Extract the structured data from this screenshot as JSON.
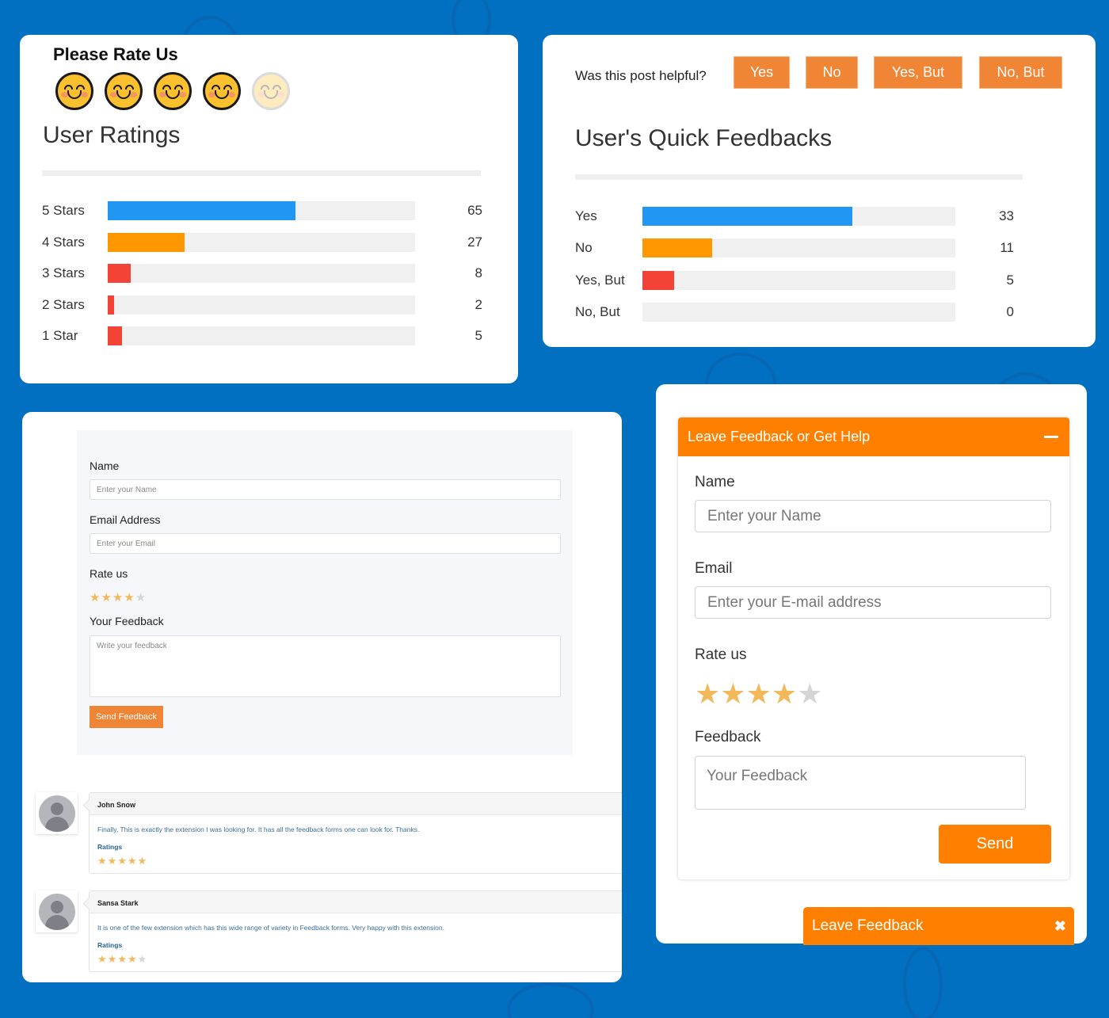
{
  "colors": {
    "background": "#0170c0",
    "accent_orange": "#f08535",
    "widget_orange": "#ff8000",
    "bar_blue": "#2196f3",
    "bar_orange": "#ff9800",
    "bar_red": "#f44336",
    "track": "#f0f0f0",
    "star_on": "#f3b85a",
    "star_off": "#d5d5d5"
  },
  "ratings_card": {
    "title": "Please Rate Us",
    "emoji_rating": 4,
    "emoji_max": 5,
    "section_title": "User Ratings",
    "rows": [
      {
        "label": "5 Stars",
        "value": "65",
        "fill_pct": 61,
        "color": "#2196f3"
      },
      {
        "label": "4 Stars",
        "value": "27",
        "fill_pct": 25,
        "color": "#ff9800"
      },
      {
        "label": "3 Stars",
        "value": "8",
        "fill_pct": 7.4,
        "color": "#f44336"
      },
      {
        "label": "2 Stars",
        "value": "2",
        "fill_pct": 2,
        "color": "#f44336"
      },
      {
        "label": "1 Star",
        "value": "5",
        "fill_pct": 4.7,
        "color": "#f44336"
      }
    ]
  },
  "quick_card": {
    "question": "Was this post helpful?",
    "buttons": [
      "Yes",
      "No",
      "Yes, But",
      "No, But"
    ],
    "section_title": "User's Quick Feedbacks",
    "rows": [
      {
        "label": "Yes",
        "value": "33",
        "fill_pct": 67,
        "color": "#2196f3"
      },
      {
        "label": "No",
        "value": "11",
        "fill_pct": 22.3,
        "color": "#ff9800"
      },
      {
        "label": "Yes, But",
        "value": "5",
        "fill_pct": 10,
        "color": "#f44336"
      },
      {
        "label": "No, But",
        "value": "0",
        "fill_pct": 0,
        "color": "#f44336"
      }
    ]
  },
  "form_card": {
    "name_label": "Name",
    "name_placeholder": "Enter your Name",
    "email_label": "Email Address",
    "email_placeholder": "Enter your Email",
    "rate_label": "Rate us",
    "rating": 4,
    "feedback_label": "Your Feedback",
    "feedback_placeholder": "Write your feedback",
    "submit_label": "Send Feedback",
    "comments": [
      {
        "author": "John Snow",
        "text": "Finally, This is exactly the extension I was looking for. It has all the feedback forms one can look for. Thanks.",
        "ratings_label": "Ratings",
        "rating": 5
      },
      {
        "author": "Sansa Stark",
        "text": "It is one of the few extension which has this wide range of variety in Feedback forms. Very happy with this extension.",
        "ratings_label": "Ratings",
        "rating": 4
      }
    ]
  },
  "widget_card": {
    "header_title": "Leave Feedback or Get Help",
    "name_label": "Name",
    "name_placeholder": "Enter your Name",
    "email_label": "Email",
    "email_placeholder": "Enter your E-mail address",
    "rate_label": "Rate us",
    "rating": 4,
    "feedback_label": "Feedback",
    "feedback_placeholder": "Your Feedback",
    "send_label": "Send",
    "tab_label": "Leave Feedback",
    "close_glyph": "✖"
  }
}
